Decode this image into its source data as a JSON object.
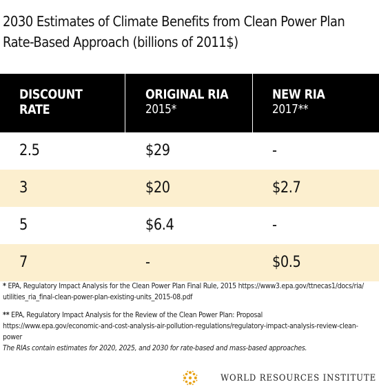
{
  "title_line1": "2030 Estimates of Climate Benefits from Clean Power Plan",
  "title_line2": "Rate-Based Approach (billions of 2011$)",
  "chart_data": {
    "type": "table",
    "title": "2030 Estimates of Climate Benefits from Clean Power Plan Rate-Based Approach (billions of 2011$)",
    "columns": [
      {
        "main": "DISCOUNT",
        "main2": "RATE",
        "sub": ""
      },
      {
        "main": "ORIGINAL RIA",
        "main2": "",
        "sub": "2015*"
      },
      {
        "main": "NEW RIA",
        "main2": "",
        "sub": "2017**"
      }
    ],
    "rows": [
      {
        "rate": "2.5",
        "original": "$29",
        "new": "-"
      },
      {
        "rate": "3",
        "original": "$20",
        "new": "$2.7"
      },
      {
        "rate": "5",
        "original": "$6.4",
        "new": "-"
      },
      {
        "rate": "7",
        "original": "-",
        "new": "$0.5"
      }
    ],
    "shaded_rows": [
      1,
      3
    ]
  },
  "notes": {
    "note1_mark": "*",
    "note1_line1": " EPA, Regulatory Impact Analysis for the Clean Power Plan Final Rule, 2015 https://www3.epa.gov/ttnecas1/docs/ria/",
    "note1_line2": "utilities_ria_final-clean-power-plan-existing-units_2015-08.pdf",
    "note2_mark": "**",
    "note2_line1": " EPA, Regulatory Impact Analysis for the Review of the Clean Power Plan: Proposal",
    "note2_line2": "https://www.epa.gov/economic-and-cost-analysis-air-pollution-regulations/regulatory-impact-analysis-review-clean-power",
    "note3": "The RIAs contain estimates for 2020, 2025, and 2030 for rate-based and mass-based approaches."
  },
  "footer": {
    "org_name": "WORLD RESOURCES INSTITUTE",
    "logo_icon": "wri-logo-icon"
  },
  "colors": {
    "header_bg": "#000000",
    "shaded_row_bg": "#fcefcf",
    "logo_gold": "#e8a317"
  }
}
